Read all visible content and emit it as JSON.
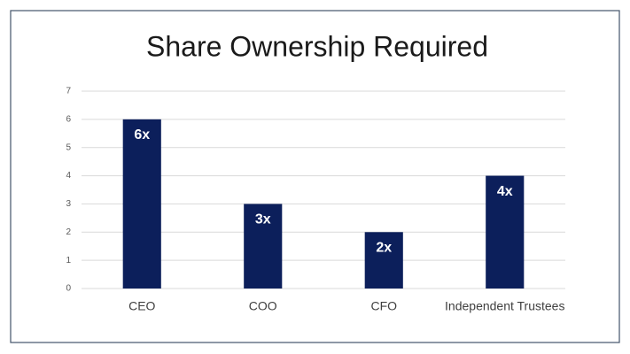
{
  "chart_data": {
    "type": "bar",
    "title": "Share Ownership Required",
    "categories": [
      "CEO",
      "COO",
      "CFO",
      "Independent Trustees"
    ],
    "values": [
      6,
      3,
      2,
      4
    ],
    "value_labels": [
      "6x",
      "3x",
      "2x",
      "4x"
    ],
    "color": "#0c1f5b",
    "ylim": [
      0,
      7
    ],
    "yticks": [
      0,
      1,
      2,
      3,
      4,
      5,
      6,
      7
    ],
    "grid": true
  }
}
